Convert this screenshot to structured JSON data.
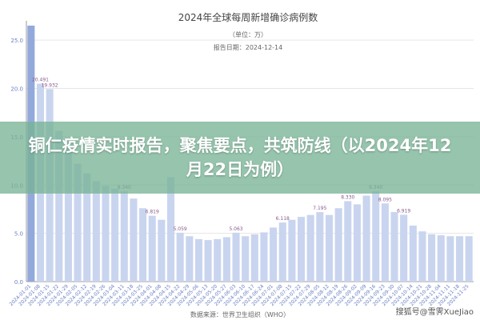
{
  "banner": {
    "headline": "铜仁疫情实时报告，聚焦要点，共筑防线（以2024年12月22日为例）"
  },
  "watermark": "搜狐号@雪霁XueJiao",
  "chart_data": {
    "type": "bar",
    "title": "2024年全球每周新增确诊病例数",
    "subtitle": "（单位：万）",
    "report_date": "报告日期：2024-12-14",
    "source": "数据来源：世界卫生组织（WHO）",
    "ylim": [
      0,
      27
    ],
    "yticks": [
      "0.0",
      "5.0",
      "10.0",
      "15.0",
      "20.0",
      "25.0"
    ],
    "bar_color": "#c9d5ef",
    "highlight_color": "#93a9dc",
    "data_labels": {
      "1": "20.491",
      "2": "19.932",
      "10": "9.340",
      "13": "6.819",
      "16": "5.059",
      "22": "5.063",
      "27": "6.118",
      "31": "7.195",
      "34": "8.330",
      "37": "9.340",
      "38": "8.095",
      "40": "6.919"
    },
    "values": [
      26.5,
      20.491,
      19.932,
      15.6,
      13.8,
      12.2,
      11.2,
      10.4,
      9.9,
      9.6,
      9.34,
      8.6,
      7.6,
      6.819,
      6.4,
      10.8,
      5.059,
      4.7,
      4.4,
      4.3,
      4.4,
      4.6,
      5.063,
      4.7,
      4.9,
      5.1,
      5.6,
      6.118,
      6.4,
      6.7,
      6.9,
      7.195,
      6.9,
      7.6,
      8.33,
      8.0,
      8.9,
      9.34,
      8.095,
      7.2,
      6.919,
      5.8,
      5.2,
      4.9,
      4.8,
      4.7,
      4.7,
      4.7
    ],
    "highlight_index": 0,
    "categories": [
      "2024-01-01",
      "2024-01-08",
      "2024-01-15",
      "2024-01-22",
      "2024-01-29",
      "2024-02-05",
      "2024-02-12",
      "2024-02-19",
      "2024-02-26",
      "2024-03-04",
      "2024-03-11",
      "2024-03-18",
      "2024-03-25",
      "2024-04-01",
      "2024-04-08",
      "2024-04-15",
      "2024-04-22",
      "2024-04-29",
      "2024-05-06",
      "2024-05-13",
      "2024-05-20",
      "2024-05-27",
      "2024-06-03",
      "2024-06-10",
      "2024-06-17",
      "2024-06-24",
      "2024-07-01",
      "2024-07-08",
      "2024-07-15",
      "2024-07-22",
      "2024-07-29",
      "2024-08-05",
      "2024-08-12",
      "2024-08-19",
      "2024-08-26",
      "2024-09-02",
      "2024-09-09",
      "2024-09-16",
      "2024-09-23",
      "2024-09-30",
      "2024-10-07",
      "2024-10-14",
      "2024-10-21",
      "2024-10-28",
      "2024-11-04",
      "2024-11-11",
      "2024-11-18",
      "2024-11-25"
    ]
  }
}
